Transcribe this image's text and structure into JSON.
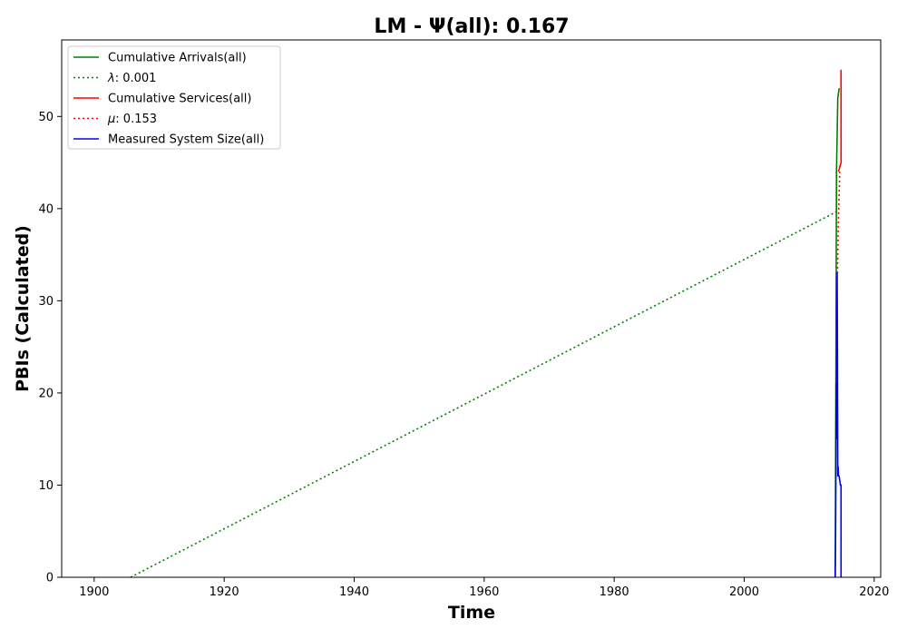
{
  "chart_data": {
    "type": "line",
    "title": "LM -  Ψ(all): 0.167",
    "xlabel": "Time",
    "ylabel": "PBIs (Calculated)",
    "xlim": [
      1895,
      2021
    ],
    "ylim": [
      0,
      58.3
    ],
    "x_ticks": [
      1900,
      1920,
      1940,
      1960,
      1980,
      2000,
      2020
    ],
    "y_ticks": [
      0,
      10,
      20,
      30,
      40,
      50
    ],
    "grid": false,
    "legend_position": "top-left",
    "series": [
      {
        "name": "Cumulative Arrivals(all)",
        "color": "#008000",
        "style": "solid",
        "points": [
          [
            2014.0,
            0
          ],
          [
            2014.1,
            20
          ],
          [
            2014.2,
            44
          ],
          [
            2014.4,
            52
          ],
          [
            2014.6,
            53
          ],
          [
            2014.7,
            53
          ]
        ]
      },
      {
        "name": "λ: 0.001",
        "legend_label_prefix": "λ",
        "legend_label_value": ": 0.001",
        "color": "#008000",
        "style": "dotted",
        "points": [
          [
            1905.6,
            0
          ],
          [
            2014.3,
            39.7
          ]
        ]
      },
      {
        "name": "Cumulative Services(all)",
        "color": "#ff0000",
        "style": "solid",
        "points": [
          [
            2014.5,
            44
          ],
          [
            2014.7,
            44.5
          ],
          [
            2014.9,
            45
          ],
          [
            2014.9,
            55
          ],
          [
            2015.0,
            55
          ]
        ]
      },
      {
        "name": "μ: 0.153",
        "legend_label_prefix": "μ",
        "legend_label_value": ": 0.153",
        "color": "#ff0000",
        "style": "dotted",
        "points": [
          [
            2014.35,
            33
          ],
          [
            2014.5,
            39
          ],
          [
            2014.7,
            44
          ]
        ]
      },
      {
        "name": "Measured System Size(all)",
        "color": "#0000ff",
        "style": "solid",
        "points": [
          [
            2014.0,
            0
          ],
          [
            2014.05,
            3
          ],
          [
            2014.1,
            10
          ],
          [
            2014.15,
            21
          ],
          [
            2014.2,
            15
          ],
          [
            2014.25,
            28
          ],
          [
            2014.3,
            33
          ],
          [
            2014.35,
            24
          ],
          [
            2014.4,
            11
          ],
          [
            2014.45,
            12
          ],
          [
            2014.5,
            11
          ],
          [
            2014.6,
            11
          ],
          [
            2014.7,
            10.5
          ],
          [
            2014.8,
            10
          ],
          [
            2014.9,
            10
          ],
          [
            2014.9,
            0
          ]
        ]
      }
    ]
  }
}
